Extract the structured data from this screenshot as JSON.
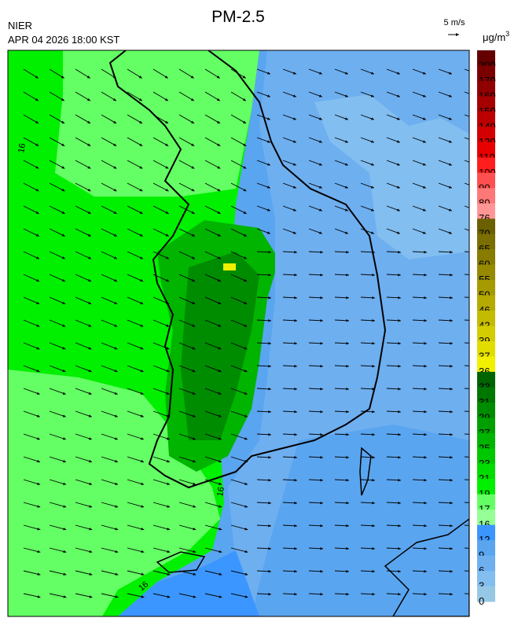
{
  "header": {
    "title": "PM-2.5",
    "agency": "NIER",
    "datetime": "APR 04 2026 18:00 KST",
    "wind_scale": "5 m/s",
    "unit": "μg/m",
    "unit_exponent": "3"
  },
  "map": {
    "contour_labels": [
      "16",
      "16",
      "16"
    ]
  },
  "colorbar": {
    "labels": [
      "200",
      "170",
      "160",
      "150",
      "140",
      "120",
      "110",
      "100",
      "90",
      "80",
      "76",
      "70",
      "65",
      "60",
      "55",
      "50",
      "46",
      "42",
      "39",
      "37",
      "36",
      "33",
      "31",
      "29",
      "27",
      "25",
      "23",
      "21",
      "19",
      "17",
      "16",
      "12",
      "9",
      "6",
      "3",
      "0"
    ],
    "colors": [
      "#640000",
      "#7a0000",
      "#900000",
      "#a60000",
      "#bc0000",
      "#d20000",
      "#e80000",
      "#ff1e1e",
      "#ff5050",
      "#ff7878",
      "#ff9696",
      "#6b6000",
      "#7a6f00",
      "#877c00",
      "#968b00",
      "#a59a00",
      "#b4aa00",
      "#c3bb00",
      "#d2cc00",
      "#e1dd00",
      "#f0f000",
      "#006400",
      "#007800",
      "#008c00",
      "#00a000",
      "#00b400",
      "#00c800",
      "#00dc00",
      "#00f000",
      "#64ff64",
      "#96ff96",
      "#3c96ff",
      "#5aa5f0",
      "#6eaff0",
      "#82bef0",
      "#96c8e6"
    ]
  }
}
